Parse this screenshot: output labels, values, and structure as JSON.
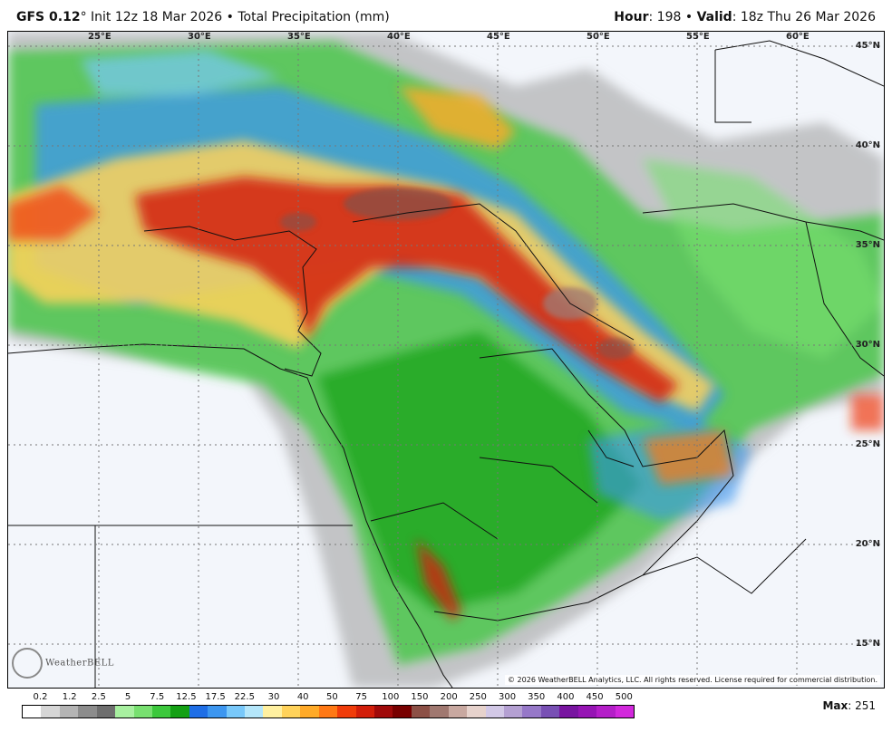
{
  "header": {
    "model_label": "GFS 0.12",
    "degree": "°",
    "init_text": " Init 12z 18 Mar 2026 • Total Precipitation (mm)",
    "hour_label": "Hour",
    "hour_value": ": 198 • ",
    "valid_label": "Valid",
    "valid_value": ": 18z Thu 26 Mar 2026"
  },
  "map": {
    "longitude_labels": [
      "25°E",
      "30°E",
      "35°E",
      "40°E",
      "45°E",
      "50°E",
      "55°E",
      "60°E"
    ],
    "latitude_labels": [
      "45°N",
      "40°N",
      "35°N",
      "30°N",
      "25°N",
      "20°N",
      "15°N"
    ],
    "copyright": "© 2026 WeatherBELL Analytics, LLC. All rights reserved. License required for commercial distribution.",
    "logo_text": "WeatherBELL"
  },
  "colorbar": {
    "labels": [
      "0.2",
      "1.2",
      "2.5",
      "5",
      "7.5",
      "12.5",
      "17.5",
      "22.5",
      "30",
      "40",
      "50",
      "75",
      "100",
      "150",
      "200",
      "250",
      "300",
      "350",
      "400",
      "450",
      "500"
    ],
    "colors": [
      "#ffffff",
      "#d6d6d6",
      "#b4b4b4",
      "#8c8c8c",
      "#6e6e6e",
      "#a8f0a0",
      "#78e070",
      "#3cc83c",
      "#14a014",
      "#1e6ee6",
      "#3c96f0",
      "#78c8fa",
      "#b4e6fa",
      "#fff0a0",
      "#ffd25a",
      "#ffaa28",
      "#ff7814",
      "#f03c0a",
      "#d21e0a",
      "#a00a0a",
      "#780000",
      "#8c5046",
      "#a07870",
      "#c8a8a0",
      "#e6d2cc",
      "#d2c8e6",
      "#b4a0d2",
      "#9678c8",
      "#7850b4",
      "#7814a0",
      "#9614b4",
      "#b41ec8",
      "#d228dc"
    ]
  },
  "max": {
    "label": "Max",
    "value": ": 251"
  }
}
